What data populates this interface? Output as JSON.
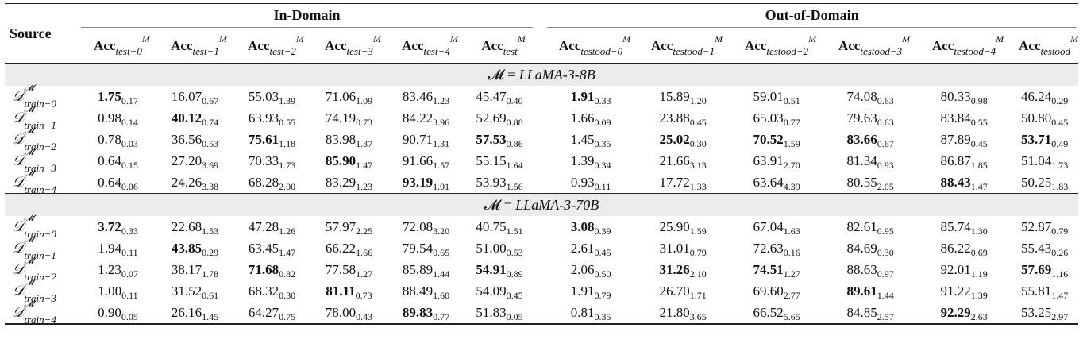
{
  "table": {
    "source_header": "Source",
    "groups": [
      {
        "label": "In-Domain",
        "span": 6
      },
      {
        "label": "Out-of-Domain",
        "span": 6
      }
    ],
    "columns": [
      {
        "base": "Acc",
        "sup": "M",
        "sub": "test−0"
      },
      {
        "base": "Acc",
        "sup": "M",
        "sub": "test−1"
      },
      {
        "base": "Acc",
        "sup": "M",
        "sub": "test−2"
      },
      {
        "base": "Acc",
        "sup": "M",
        "sub": "test−3"
      },
      {
        "base": "Acc",
        "sup": "M",
        "sub": "test−4"
      },
      {
        "base": "Acc",
        "sup": "M",
        "sub": "test"
      },
      {
        "base": "Acc",
        "sup": "M",
        "sub": "testood−0"
      },
      {
        "base": "Acc",
        "sup": "M",
        "sub": "testood−1"
      },
      {
        "base": "Acc",
        "sup": "M",
        "sub": "testood−2"
      },
      {
        "base": "Acc",
        "sup": "M",
        "sub": "testood−3"
      },
      {
        "base": "Acc",
        "sup": "M",
        "sub": "testood−4"
      },
      {
        "base": "Acc",
        "sup": "M",
        "sub": "testood"
      }
    ],
    "blocks": [
      {
        "label_prefix": "𝓜 = ",
        "model": "LLaMA-3-8B",
        "rows": [
          {
            "src": {
              "sym": "𝒟",
              "sup": "𝓜",
              "sub": "train−0"
            },
            "cells": [
              {
                "v": "1.75",
                "s": "0.17",
                "b": true
              },
              {
                "v": "16.07",
                "s": "0.67"
              },
              {
                "v": "55.03",
                "s": "1.39"
              },
              {
                "v": "71.06",
                "s": "1.09"
              },
              {
                "v": "83.46",
                "s": "1.23"
              },
              {
                "v": "45.47",
                "s": "0.40"
              },
              {
                "v": "1.91",
                "s": "0.33",
                "b": true
              },
              {
                "v": "15.89",
                "s": "1.20"
              },
              {
                "v": "59.01",
                "s": "0.51"
              },
              {
                "v": "74.08",
                "s": "0.63"
              },
              {
                "v": "80.33",
                "s": "0.98"
              },
              {
                "v": "46.24",
                "s": "0.29"
              }
            ]
          },
          {
            "src": {
              "sym": "𝒟",
              "sup": "𝓜",
              "sub": "train−1"
            },
            "cells": [
              {
                "v": "0.98",
                "s": "0.14"
              },
              {
                "v": "40.12",
                "s": "0.74",
                "b": true
              },
              {
                "v": "63.93",
                "s": "0.55"
              },
              {
                "v": "74.19",
                "s": "0.73"
              },
              {
                "v": "84.22",
                "s": "3.96"
              },
              {
                "v": "52.69",
                "s": "0.88"
              },
              {
                "v": "1.66",
                "s": "0.09"
              },
              {
                "v": "23.88",
                "s": "0.45"
              },
              {
                "v": "65.03",
                "s": "0.77"
              },
              {
                "v": "79.63",
                "s": "0.63"
              },
              {
                "v": "83.84",
                "s": "0.55"
              },
              {
                "v": "50.80",
                "s": "0.45"
              }
            ]
          },
          {
            "src": {
              "sym": "𝒟",
              "sup": "𝓜",
              "sub": "train−2"
            },
            "cells": [
              {
                "v": "0.78",
                "s": "0.03"
              },
              {
                "v": "36.56",
                "s": "0.53"
              },
              {
                "v": "75.61",
                "s": "1.18",
                "b": true
              },
              {
                "v": "83.98",
                "s": "1.37"
              },
              {
                "v": "90.71",
                "s": "1.31"
              },
              {
                "v": "57.53",
                "s": "0.86",
                "b": true
              },
              {
                "v": "1.45",
                "s": "0.35"
              },
              {
                "v": "25.02",
                "s": "0.30",
                "b": true
              },
              {
                "v": "70.52",
                "s": "1.59",
                "b": true
              },
              {
                "v": "83.66",
                "s": "0.67",
                "b": true
              },
              {
                "v": "87.89",
                "s": "0.45"
              },
              {
                "v": "53.71",
                "s": "0.49",
                "b": true
              }
            ]
          },
          {
            "src": {
              "sym": "𝒟",
              "sup": "𝓜",
              "sub": "train−3"
            },
            "cells": [
              {
                "v": "0.64",
                "s": "0.15"
              },
              {
                "v": "27.20",
                "s": "3.69"
              },
              {
                "v": "70.33",
                "s": "1.73"
              },
              {
                "v": "85.90",
                "s": "1.47",
                "b": true
              },
              {
                "v": "91.66",
                "s": "1.57"
              },
              {
                "v": "55.15",
                "s": "1.64"
              },
              {
                "v": "1.39",
                "s": "0.34"
              },
              {
                "v": "21.66",
                "s": "3.13"
              },
              {
                "v": "63.91",
                "s": "2.70"
              },
              {
                "v": "81.34",
                "s": "0.93"
              },
              {
                "v": "86.87",
                "s": "1.85"
              },
              {
                "v": "51.04",
                "s": "1.73"
              }
            ]
          },
          {
            "src": {
              "sym": "𝒟",
              "sup": "𝓜",
              "sub": "train−4"
            },
            "cells": [
              {
                "v": "0.64",
                "s": "0.06"
              },
              {
                "v": "24.26",
                "s": "3.38"
              },
              {
                "v": "68.28",
                "s": "2.00"
              },
              {
                "v": "83.29",
                "s": "1.23"
              },
              {
                "v": "93.19",
                "s": "1.91",
                "b": true
              },
              {
                "v": "53.93",
                "s": "1.56"
              },
              {
                "v": "0.93",
                "s": "0.11"
              },
              {
                "v": "17.72",
                "s": "1.33"
              },
              {
                "v": "63.64",
                "s": "4.39"
              },
              {
                "v": "80.55",
                "s": "2.05"
              },
              {
                "v": "88.43",
                "s": "1.47",
                "b": true
              },
              {
                "v": "50.25",
                "s": "1.83"
              }
            ]
          }
        ]
      },
      {
        "label_prefix": "𝓜 = ",
        "model": "LLaMA-3-70B",
        "rows": [
          {
            "src": {
              "sym": "𝒟",
              "sup": "𝓜",
              "sub": "train−0"
            },
            "cells": [
              {
                "v": "3.72",
                "s": "0.33",
                "b": true
              },
              {
                "v": "22.68",
                "s": "1.53"
              },
              {
                "v": "47.28",
                "s": "1.26"
              },
              {
                "v": "57.97",
                "s": "2.25"
              },
              {
                "v": "72.08",
                "s": "3.20"
              },
              {
                "v": "40.75",
                "s": "1.51"
              },
              {
                "v": "3.08",
                "s": "0.39",
                "b": true
              },
              {
                "v": "25.90",
                "s": "1.59"
              },
              {
                "v": "67.04",
                "s": "1.63"
              },
              {
                "v": "82.61",
                "s": "0.95"
              },
              {
                "v": "85.74",
                "s": "1.30"
              },
              {
                "v": "52.87",
                "s": "0.79"
              }
            ]
          },
          {
            "src": {
              "sym": "𝒟",
              "sup": "𝓜",
              "sub": "train−1"
            },
            "cells": [
              {
                "v": "1.94",
                "s": "0.11"
              },
              {
                "v": "43.85",
                "s": "0.29",
                "b": true
              },
              {
                "v": "63.45",
                "s": "1.47"
              },
              {
                "v": "66.22",
                "s": "1.66"
              },
              {
                "v": "79.54",
                "s": "0.65"
              },
              {
                "v": "51.00",
                "s": "0.53"
              },
              {
                "v": "2.61",
                "s": "0.45"
              },
              {
                "v": "31.01",
                "s": "0.79"
              },
              {
                "v": "72.63",
                "s": "0.16"
              },
              {
                "v": "84.69",
                "s": "0.30"
              },
              {
                "v": "86.22",
                "s": "0.69"
              },
              {
                "v": "55.43",
                "s": "0.26"
              }
            ]
          },
          {
            "src": {
              "sym": "𝒟",
              "sup": "𝓜",
              "sub": "train−2"
            },
            "cells": [
              {
                "v": "1.23",
                "s": "0.07"
              },
              {
                "v": "38.17",
                "s": "1.78"
              },
              {
                "v": "71.68",
                "s": "0.82",
                "b": true
              },
              {
                "v": "77.58",
                "s": "1.27"
              },
              {
                "v": "85.89",
                "s": "1.44"
              },
              {
                "v": "54.91",
                "s": "0.89",
                "b": true
              },
              {
                "v": "2.06",
                "s": "0.50"
              },
              {
                "v": "31.26",
                "s": "2.10",
                "b": true
              },
              {
                "v": "74.51",
                "s": "1.27",
                "b": true
              },
              {
                "v": "88.63",
                "s": "0.97"
              },
              {
                "v": "92.01",
                "s": "1.19"
              },
              {
                "v": "57.69",
                "s": "1.16",
                "b": true
              }
            ]
          },
          {
            "src": {
              "sym": "𝒟",
              "sup": "𝓜",
              "sub": "train−3"
            },
            "cells": [
              {
                "v": "1.00",
                "s": "0.11"
              },
              {
                "v": "31.52",
                "s": "0.61"
              },
              {
                "v": "68.32",
                "s": "0.30"
              },
              {
                "v": "81.11",
                "s": "0.73",
                "b": true
              },
              {
                "v": "88.49",
                "s": "1.60"
              },
              {
                "v": "54.09",
                "s": "0.45"
              },
              {
                "v": "1.91",
                "s": "0.79"
              },
              {
                "v": "26.70",
                "s": "1.71"
              },
              {
                "v": "69.60",
                "s": "2.77"
              },
              {
                "v": "89.61",
                "s": "1.44",
                "b": true
              },
              {
                "v": "91.22",
                "s": "1.39"
              },
              {
                "v": "55.81",
                "s": "1.47"
              }
            ]
          },
          {
            "src": {
              "sym": "𝒟",
              "sup": "𝓜",
              "sub": "train−4"
            },
            "cells": [
              {
                "v": "0.90",
                "s": "0.05"
              },
              {
                "v": "26.16",
                "s": "1.45"
              },
              {
                "v": "64.27",
                "s": "0.75"
              },
              {
                "v": "78.00",
                "s": "0.43"
              },
              {
                "v": "89.83",
                "s": "0.77",
                "b": true
              },
              {
                "v": "51.83",
                "s": "0.05"
              },
              {
                "v": "0.81",
                "s": "0.35"
              },
              {
                "v": "21.80",
                "s": "3.65"
              },
              {
                "v": "66.52",
                "s": "5.65"
              },
              {
                "v": "84.85",
                "s": "2.57"
              },
              {
                "v": "92.29",
                "s": "2.63",
                "b": true
              },
              {
                "v": "53.25",
                "s": "2.97"
              }
            ]
          }
        ]
      }
    ]
  }
}
